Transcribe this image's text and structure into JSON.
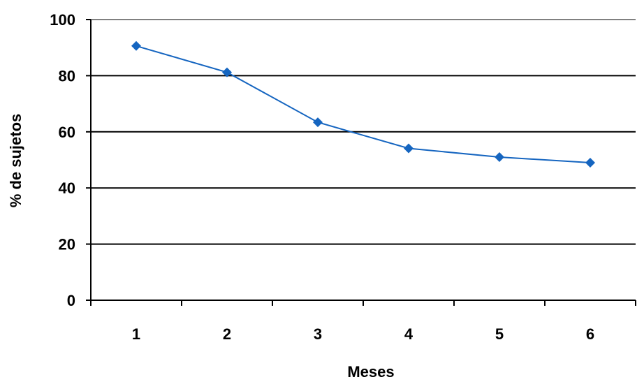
{
  "chart_data": {
    "type": "line",
    "categories": [
      "1",
      "2",
      "3",
      "4",
      "5",
      "6"
    ],
    "series": [
      {
        "values": [
          90.6,
          81.2,
          63.4,
          54.1,
          51.0,
          49.0
        ],
        "color": "#1565C0",
        "marker": "diamond"
      }
    ],
    "xlabel": "Meses",
    "ylabel": "% de sujetos",
    "ylim": [
      0,
      100
    ],
    "yticks": [
      0,
      20,
      40,
      60,
      80,
      100
    ],
    "grid": true,
    "legend": "none"
  }
}
